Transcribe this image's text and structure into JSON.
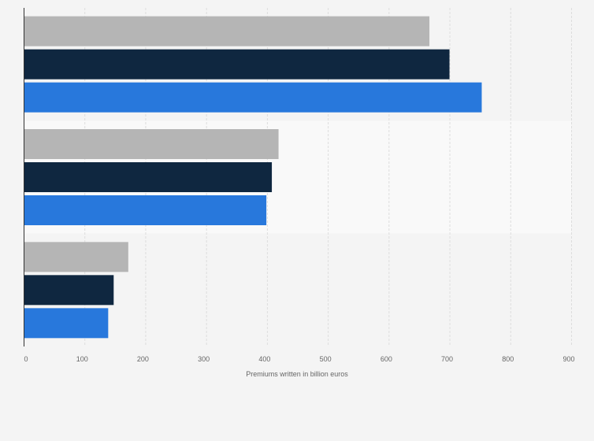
{
  "chart_data": {
    "type": "bar",
    "orientation": "horizontal",
    "title": "",
    "xlabel": "Premiums written in billion euros",
    "ylabel": "",
    "xlim": [
      0,
      900
    ],
    "x_ticks": [
      0,
      100,
      200,
      300,
      400,
      500,
      600,
      700,
      800,
      900
    ],
    "grid": true,
    "legend": "none",
    "categories": [
      "",
      "",
      ""
    ],
    "series": [
      {
        "name": "",
        "color": "#b5b5b5",
        "values": [
          667,
          419,
          172
        ]
      },
      {
        "name": "",
        "color": "#0f2740",
        "values": [
          700,
          408,
          148
        ]
      },
      {
        "name": "",
        "color": "#2878dc",
        "values": [
          753,
          399,
          139
        ]
      }
    ],
    "band_colors": [
      "#f4f4f4",
      "#f9f9f9"
    ],
    "grid_color": "#dddddd",
    "axis_color": "#333333"
  }
}
